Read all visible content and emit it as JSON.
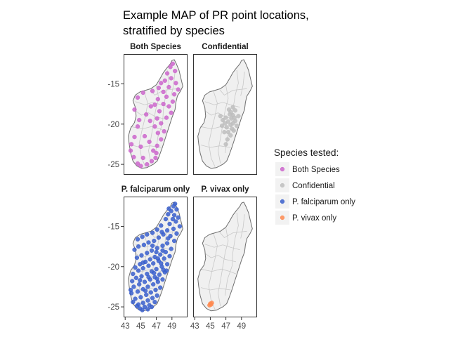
{
  "figure": {
    "title_lines": [
      "Example MAP of PR point locations,",
      "stratified by species"
    ]
  },
  "colors": {
    "Both Species": "#CC66CC",
    "Confidential": "#BEBEBE",
    "P. falciparum only": "#3A5FCD",
    "P. vivax only": "#FF8A50",
    "land_fill": "#F0F0F0",
    "district_lines": "#C8C8C8",
    "coastline": "#6E6E6E",
    "panel_border": "#333333"
  },
  "legend": {
    "title": "Species tested:",
    "position": "right",
    "items": [
      {
        "label": "Both Species",
        "icon": "filled-circle"
      },
      {
        "label": "Confidential",
        "icon": "filled-circle"
      },
      {
        "label": "P. falciparum only",
        "icon": "filled-circle"
      },
      {
        "label": "P. vivax only",
        "icon": "filled-circle"
      }
    ]
  },
  "axes": {
    "x_ticks": [
      43,
      45,
      47,
      49
    ],
    "y_ticks": [
      -15,
      -20,
      -25
    ],
    "xlim": [
      42.8,
      51.0
    ],
    "ylim": [
      -26.3,
      -11.3
    ]
  },
  "panels": [
    {
      "strip": "Both Species",
      "species": "Both Species"
    },
    {
      "strip": "Confidential",
      "species": "Confidential"
    },
    {
      "strip": "P. falciparum only",
      "species": "P. falciparum only"
    },
    {
      "strip": "P. vivax only",
      "species": "P. vivax only"
    }
  ],
  "chart_data": {
    "type": "scatter",
    "xlabel": "",
    "ylabel": "",
    "xlim": [
      42.8,
      51.0
    ],
    "ylim": [
      -26.3,
      -11.3
    ],
    "grid": false,
    "legend_position": "right",
    "basemap": {
      "country_outline_lonlat": [
        [
          49.3,
          -12.0
        ],
        [
          49.6,
          -12.6
        ],
        [
          49.9,
          -13.3
        ],
        [
          50.2,
          -14.5
        ],
        [
          50.4,
          -15.3
        ],
        [
          50.1,
          -15.9
        ],
        [
          49.7,
          -16.5
        ],
        [
          49.5,
          -17.3
        ],
        [
          49.4,
          -18.2
        ],
        [
          49.0,
          -19.2
        ],
        [
          48.6,
          -20.4
        ],
        [
          48.2,
          -21.6
        ],
        [
          47.8,
          -22.8
        ],
        [
          47.4,
          -23.9
        ],
        [
          47.1,
          -24.6
        ],
        [
          46.6,
          -25.0
        ],
        [
          45.8,
          -25.4
        ],
        [
          45.1,
          -25.5
        ],
        [
          44.5,
          -25.2
        ],
        [
          44.0,
          -24.6
        ],
        [
          43.7,
          -23.6
        ],
        [
          43.5,
          -22.4
        ],
        [
          43.4,
          -21.5
        ],
        [
          43.7,
          -20.5
        ],
        [
          44.2,
          -19.8
        ],
        [
          44.4,
          -19.0
        ],
        [
          44.3,
          -17.9
        ],
        [
          44.0,
          -17.1
        ],
        [
          44.3,
          -16.4
        ],
        [
          44.9,
          -16.0
        ],
        [
          45.6,
          -15.8
        ],
        [
          46.3,
          -15.6
        ],
        [
          47.0,
          -15.1
        ],
        [
          47.5,
          -14.3
        ],
        [
          47.9,
          -13.6
        ],
        [
          48.3,
          -13.1
        ],
        [
          48.8,
          -12.5
        ],
        [
          49.0,
          -12.1
        ]
      ],
      "district_lines_lonlat": [
        [
          [
            44.3,
            -17.2
          ],
          [
            45.5,
            -17.6
          ],
          [
            46.6,
            -17.3
          ],
          [
            47.6,
            -17.6
          ],
          [
            48.8,
            -17.9
          ]
        ],
        [
          [
            43.7,
            -20.3
          ],
          [
            45.2,
            -20.6
          ],
          [
            46.4,
            -20.3
          ],
          [
            47.5,
            -20.6
          ],
          [
            48.3,
            -20.9
          ]
        ],
        [
          [
            43.8,
            -22.6
          ],
          [
            45.0,
            -22.9
          ],
          [
            46.2,
            -22.7
          ],
          [
            47.6,
            -22.9
          ]
        ],
        [
          [
            45.4,
            -15.9
          ],
          [
            45.9,
            -17.4
          ],
          [
            45.6,
            -19.0
          ],
          [
            45.2,
            -20.6
          ],
          [
            44.8,
            -22.4
          ],
          [
            45.1,
            -24.2
          ],
          [
            45.6,
            -25.3
          ]
        ],
        [
          [
            47.0,
            -15.2
          ],
          [
            47.3,
            -16.8
          ],
          [
            46.9,
            -18.3
          ],
          [
            46.6,
            -20.0
          ],
          [
            46.3,
            -21.8
          ],
          [
            46.0,
            -23.3
          ],
          [
            46.3,
            -24.9
          ]
        ],
        [
          [
            48.4,
            -13.3
          ],
          [
            48.6,
            -14.9
          ],
          [
            48.2,
            -16.4
          ],
          [
            47.9,
            -18.2
          ],
          [
            47.8,
            -19.9
          ],
          [
            47.2,
            -21.6
          ],
          [
            46.9,
            -23.6
          ]
        ],
        [
          [
            49.4,
            -13.5
          ],
          [
            49.2,
            -15.2
          ],
          [
            48.9,
            -16.5
          ]
        ],
        [
          [
            46.2,
            -15.7
          ],
          [
            46.8,
            -16.4
          ],
          [
            47.9,
            -15.8
          ],
          [
            49.7,
            -15.6
          ]
        ],
        [
          [
            44.4,
            -18.4
          ],
          [
            45.1,
            -18.9
          ],
          [
            46.0,
            -18.6
          ],
          [
            46.9,
            -19.1
          ],
          [
            48.3,
            -19.4
          ]
        ]
      ]
    },
    "series": [
      {
        "name": "Both Species",
        "points": [
          [
            49.1,
            -12.5
          ],
          [
            48.8,
            -12.9
          ],
          [
            49.4,
            -13.4
          ],
          [
            48.4,
            -13.7
          ],
          [
            48.9,
            -14.3
          ],
          [
            49.5,
            -14.9
          ],
          [
            48.1,
            -14.6
          ],
          [
            47.6,
            -14.9
          ],
          [
            49.8,
            -15.7
          ],
          [
            48.6,
            -15.4
          ],
          [
            47.3,
            -15.5
          ],
          [
            46.5,
            -15.9
          ],
          [
            47.9,
            -16.0
          ],
          [
            45.3,
            -16.1
          ],
          [
            49.3,
            -16.3
          ],
          [
            48.3,
            -16.6
          ],
          [
            44.6,
            -16.7
          ],
          [
            47.2,
            -16.9
          ],
          [
            49.1,
            -17.2
          ],
          [
            46.8,
            -17.6
          ],
          [
            47.9,
            -17.5
          ],
          [
            48.6,
            -17.8
          ],
          [
            46.3,
            -17.8
          ],
          [
            44.2,
            -18.2
          ],
          [
            47.4,
            -18.4
          ],
          [
            48.9,
            -18.6
          ],
          [
            45.7,
            -18.8
          ],
          [
            47.1,
            -19.3
          ],
          [
            44.8,
            -19.5
          ],
          [
            48.3,
            -19.2
          ],
          [
            46.2,
            -19.6
          ],
          [
            47.6,
            -19.9
          ],
          [
            44.6,
            -20.3
          ],
          [
            46.8,
            -20.3
          ],
          [
            48.0,
            -20.9
          ],
          [
            47.2,
            -21.1
          ],
          [
            44.2,
            -21.6
          ],
          [
            45.5,
            -21.5
          ],
          [
            47.6,
            -21.9
          ],
          [
            43.8,
            -22.5
          ],
          [
            46.1,
            -22.2
          ],
          [
            45.0,
            -22.8
          ],
          [
            47.1,
            -22.7
          ],
          [
            46.6,
            -23.3
          ],
          [
            43.7,
            -23.3
          ],
          [
            44.1,
            -24.1
          ],
          [
            45.3,
            -24.2
          ],
          [
            46.4,
            -24.6
          ],
          [
            44.6,
            -24.9
          ],
          [
            45.8,
            -25.0
          ],
          [
            45.0,
            -25.2
          ],
          [
            46.9,
            -24.2
          ],
          [
            47.0,
            -23.6
          ]
        ]
      },
      {
        "name": "Confidential",
        "points": [
          [
            47.5,
            -18.8
          ],
          [
            47.9,
            -18.9
          ],
          [
            47.0,
            -19.2
          ],
          [
            47.7,
            -19.3
          ],
          [
            48.2,
            -19.6
          ],
          [
            46.6,
            -19.5
          ],
          [
            47.3,
            -19.7
          ],
          [
            47.9,
            -19.9
          ],
          [
            48.1,
            -19.2
          ],
          [
            46.9,
            -19.9
          ],
          [
            47.6,
            -20.1
          ],
          [
            48.4,
            -20.2
          ],
          [
            47.1,
            -20.4
          ],
          [
            47.8,
            -20.6
          ],
          [
            46.5,
            -20.2
          ],
          [
            48.0,
            -20.8
          ],
          [
            47.3,
            -21.0
          ],
          [
            47.6,
            -21.4
          ],
          [
            47.2,
            -21.9
          ],
          [
            47.0,
            -22.5
          ],
          [
            47.9,
            -17.9
          ],
          [
            48.2,
            -18.3
          ],
          [
            46.3,
            -19.0
          ],
          [
            47.4,
            -18.2
          ],
          [
            48.6,
            -19.0
          ],
          [
            47.6,
            -18.5
          ],
          [
            46.8,
            -21.0
          ]
        ]
      },
      {
        "name": "P. falciparum only",
        "points": [
          [
            49.4,
            -12.2
          ],
          [
            49.2,
            -12.5
          ],
          [
            49.6,
            -12.9
          ],
          [
            48.9,
            -13.1
          ],
          [
            49.3,
            -13.6
          ],
          [
            48.5,
            -13.5
          ],
          [
            49.8,
            -13.9
          ],
          [
            48.2,
            -14.1
          ],
          [
            49.5,
            -14.4
          ],
          [
            48.7,
            -14.7
          ],
          [
            50.0,
            -15.0
          ],
          [
            47.6,
            -14.9
          ],
          [
            49.2,
            -15.3
          ],
          [
            48.4,
            -15.5
          ],
          [
            47.1,
            -15.4
          ],
          [
            46.5,
            -15.8
          ],
          [
            45.8,
            -16.0
          ],
          [
            45.2,
            -16.3
          ],
          [
            44.6,
            -16.6
          ],
          [
            49.6,
            -15.9
          ],
          [
            48.8,
            -16.2
          ],
          [
            47.9,
            -16.0
          ],
          [
            47.3,
            -16.4
          ],
          [
            46.7,
            -16.8
          ],
          [
            46.0,
            -17.0
          ],
          [
            45.4,
            -17.3
          ],
          [
            44.7,
            -17.5
          ],
          [
            44.2,
            -17.9
          ],
          [
            49.3,
            -16.8
          ],
          [
            48.4,
            -17.1
          ],
          [
            47.8,
            -17.4
          ],
          [
            47.1,
            -17.7
          ],
          [
            46.4,
            -18.0
          ],
          [
            45.8,
            -18.3
          ],
          [
            45.1,
            -18.6
          ],
          [
            44.5,
            -18.9
          ],
          [
            48.9,
            -17.8
          ],
          [
            48.2,
            -18.2
          ],
          [
            47.5,
            -18.5
          ],
          [
            46.8,
            -18.8
          ],
          [
            46.2,
            -19.1
          ],
          [
            45.6,
            -19.4
          ],
          [
            44.9,
            -19.7
          ],
          [
            44.3,
            -20.1
          ],
          [
            48.7,
            -18.7
          ],
          [
            48.0,
            -19.0
          ],
          [
            47.3,
            -19.3
          ],
          [
            46.6,
            -19.6
          ],
          [
            46.0,
            -19.9
          ],
          [
            45.3,
            -20.2
          ],
          [
            44.7,
            -20.5
          ],
          [
            48.4,
            -19.7
          ],
          [
            47.7,
            -20.0
          ],
          [
            47.0,
            -20.3
          ],
          [
            46.4,
            -20.6
          ],
          [
            45.8,
            -20.9
          ],
          [
            45.1,
            -21.2
          ],
          [
            44.4,
            -21.4
          ],
          [
            43.9,
            -21.8
          ],
          [
            48.1,
            -20.7
          ],
          [
            47.4,
            -21.0
          ],
          [
            46.8,
            -21.3
          ],
          [
            46.2,
            -21.6
          ],
          [
            45.5,
            -21.9
          ],
          [
            44.8,
            -22.2
          ],
          [
            44.1,
            -22.5
          ],
          [
            47.8,
            -21.6
          ],
          [
            47.2,
            -21.9
          ],
          [
            46.6,
            -22.2
          ],
          [
            45.9,
            -22.5
          ],
          [
            45.3,
            -22.8
          ],
          [
            44.6,
            -23.1
          ],
          [
            43.8,
            -23.3
          ],
          [
            47.5,
            -22.6
          ],
          [
            46.9,
            -22.9
          ],
          [
            46.3,
            -23.2
          ],
          [
            45.7,
            -23.5
          ],
          [
            45.0,
            -23.8
          ],
          [
            44.3,
            -24.0
          ],
          [
            47.1,
            -23.6
          ],
          [
            46.5,
            -23.9
          ],
          [
            45.9,
            -24.2
          ],
          [
            45.3,
            -24.5
          ],
          [
            44.7,
            -24.7
          ],
          [
            46.8,
            -24.4
          ],
          [
            46.1,
            -24.8
          ],
          [
            45.5,
            -25.0
          ],
          [
            44.9,
            -25.2
          ],
          [
            45.9,
            -25.3
          ],
          [
            46.4,
            -25.0
          ],
          [
            45.2,
            -25.4
          ],
          [
            44.5,
            -24.9
          ],
          [
            44.0,
            -24.4
          ],
          [
            43.7,
            -22.9
          ],
          [
            44.0,
            -20.9
          ],
          [
            47.8,
            -18.0
          ],
          [
            47.2,
            -19.0
          ],
          [
            47.9,
            -20.4
          ],
          [
            46.5,
            -17.4
          ],
          [
            47.0,
            -18.2
          ],
          [
            48.5,
            -16.5
          ],
          [
            49.1,
            -14.1
          ],
          [
            48.6,
            -12.8
          ],
          [
            47.7,
            -15.7
          ],
          [
            46.0,
            -21.3
          ],
          [
            45.6,
            -23.0
          ],
          [
            44.9,
            -21.7
          ],
          [
            45.3,
            -19.5
          ],
          [
            46.7,
            -20.8
          ],
          [
            47.6,
            -19.6
          ],
          [
            48.3,
            -20.5
          ],
          [
            47.1,
            -21.5
          ]
        ]
      },
      {
        "name": "P. vivax only",
        "points": [
          [
            45.0,
            -24.6
          ],
          [
            45.2,
            -24.5
          ],
          [
            44.9,
            -24.8
          ],
          [
            45.1,
            -24.7
          ]
        ]
      }
    ]
  }
}
